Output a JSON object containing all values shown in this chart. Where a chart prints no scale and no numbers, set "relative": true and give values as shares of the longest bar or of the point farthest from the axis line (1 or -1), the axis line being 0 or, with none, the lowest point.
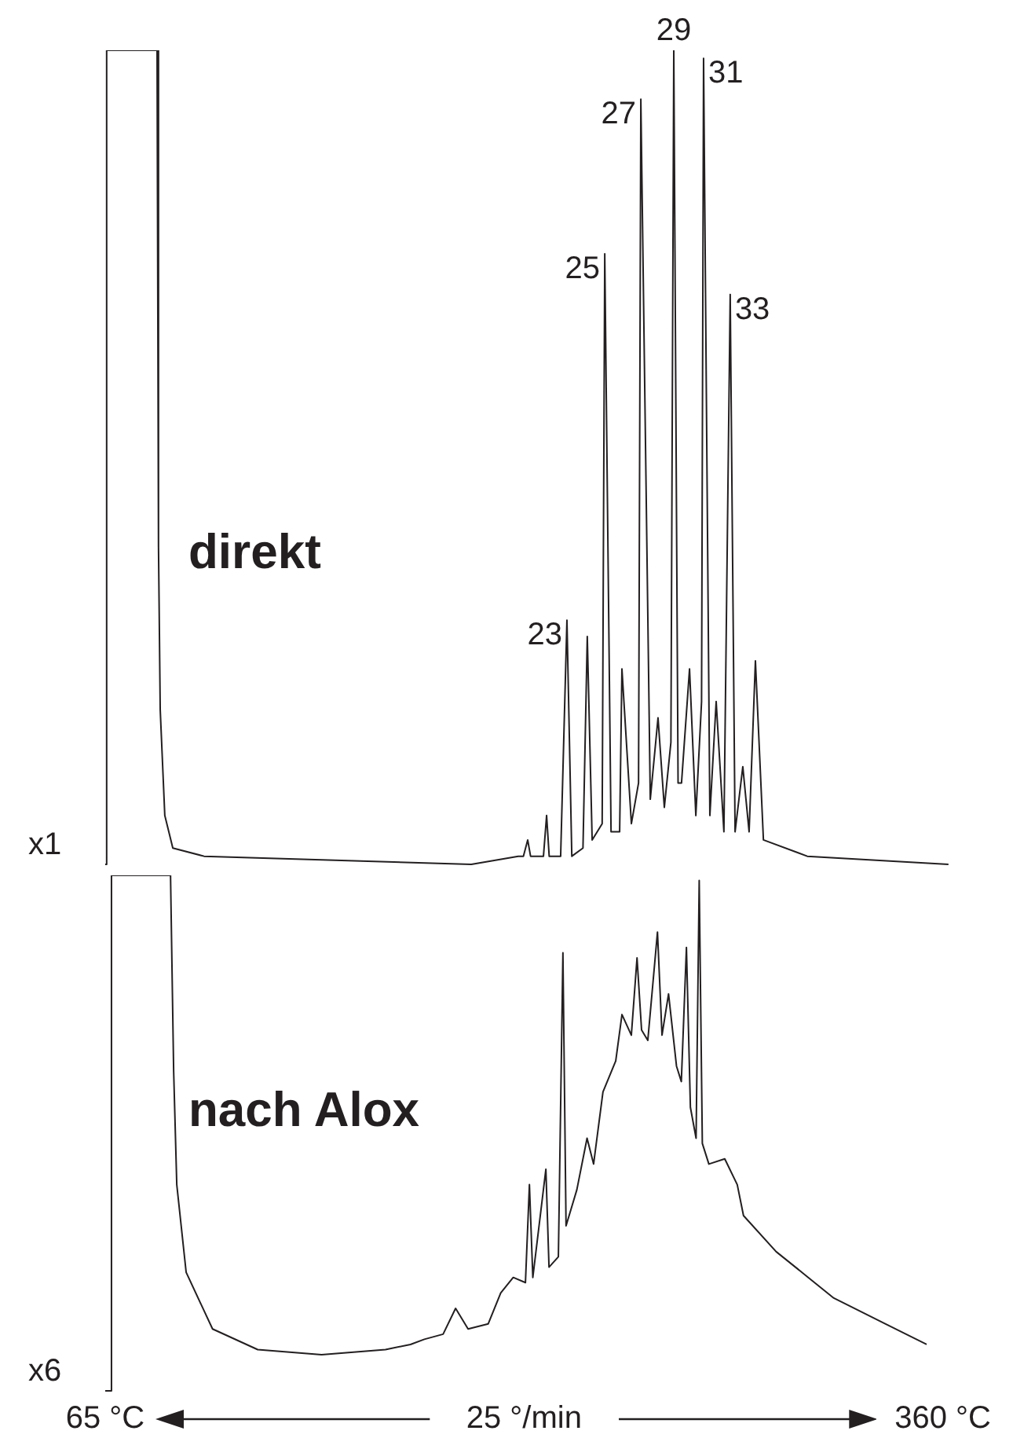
{
  "chart_data": [
    {
      "type": "line",
      "title": "direkt",
      "relative": true,
      "xlim": [
        65,
        360
      ],
      "tick_labels": false,
      "marker": "none",
      "grid": false,
      "legend": false,
      "annotations": [
        "x1",
        {
          "text": "23",
          "x": 226.2,
          "y": 0.3
        },
        {
          "text": "25",
          "x": 239.4,
          "y": 0.75
        },
        {
          "text": "27",
          "x": 252,
          "y": 0.94
        },
        {
          "text": "29",
          "x": 263.5,
          "y": 1
        },
        {
          "text": "31",
          "x": 273.9,
          "y": 0.99
        },
        {
          "text": "33",
          "x": 283.2,
          "y": 0.7
        }
      ],
      "series": [
        {
          "color": "#231f20",
          "x": [
            65,
            65.5,
            83.1,
            83.6,
            84.2,
            85.8,
            88.6,
            99.5,
            192.8,
            209.2,
            211,
            212.5,
            213.5,
            218,
            219.1,
            220,
            224,
            226.2,
            227.9,
            231.8,
            233.3,
            235,
            238.5,
            239.4,
            241.6,
            244.6,
            245.4,
            248.7,
            251.2,
            252,
            255.3,
            258,
            260.2,
            262.5,
            263.5,
            265,
            266.2,
            269,
            271.2,
            273.2,
            273.9,
            276.1,
            278.3,
            281,
            283.2,
            284.9,
            287.6,
            289.8,
            292,
            294.8,
            310.1,
            359.4
          ],
          "values": [
            0,
            1,
            1,
            0.39,
            0.19,
            0.06,
            0.02,
            0.01,
            0,
            0.01,
            0.01,
            0.03,
            0.01,
            0.01,
            0.06,
            0.01,
            0.01,
            0.3,
            0.01,
            0.02,
            0.28,
            0.03,
            0.05,
            0.75,
            0.04,
            0.04,
            0.24,
            0.05,
            0.1,
            0.94,
            0.08,
            0.18,
            0.07,
            0.15,
            1,
            0.1,
            0.1,
            0.24,
            0.06,
            0.2,
            0.99,
            0.06,
            0.2,
            0.04,
            0.7,
            0.04,
            0.12,
            0.04,
            0.25,
            0.03,
            0.01,
            0
          ]
        }
      ]
    },
    {
      "type": "line",
      "title": "nach Alox",
      "xlabel": "25 °/min",
      "relative": true,
      "xlim": [
        65,
        360
      ],
      "xticks": [
        {
          "value": 65,
          "label": "65 °C"
        },
        {
          "value": 360,
          "label": "360 °C"
        }
      ],
      "tick_labels": "x",
      "marker": "none",
      "grid": false,
      "legend": false,
      "annotations": [
        "x6"
      ],
      "series": [
        {
          "color": "#231f20",
          "x": [
            65,
            67.1,
            67.2,
            88,
            89.1,
            90.2,
            93.5,
            102.8,
            118.7,
            141.2,
            163.7,
            172.5,
            177.4,
            184,
            188.4,
            192.8,
            199.9,
            204.3,
            208.7,
            213,
            214.4,
            215.6,
            220.2,
            221.3,
            224.6,
            226.2,
            227.3,
            231.1,
            234.7,
            237,
            240.3,
            244.8,
            247,
            250.3,
            252.3,
            253.9,
            256.1,
            259.5,
            261.1,
            263.4,
            266.2,
            267.9,
            269.7,
            271.1,
            273.1,
            274.2,
            275.3,
            277.6,
            283.2,
            287.6,
            289.8,
            301.3,
            312.6,
            321.6,
            339.7,
            354.3
          ],
          "values": [
            0,
            0,
            1,
            1,
            0.62,
            0.4,
            0.23,
            0.12,
            0.08,
            0.07,
            0.08,
            0.09,
            0.1,
            0.11,
            0.16,
            0.12,
            0.13,
            0.19,
            0.22,
            0.21,
            0.4,
            0.22,
            0.43,
            0.24,
            0.26,
            0.85,
            0.32,
            0.39,
            0.49,
            0.44,
            0.58,
            0.64,
            0.73,
            0.69,
            0.84,
            0.7,
            0.68,
            0.89,
            0.69,
            0.77,
            0.63,
            0.6,
            0.86,
            0.55,
            0.49,
            0.99,
            0.48,
            0.44,
            0.45,
            0.4,
            0.34,
            0.27,
            0.22,
            0.18,
            0.13,
            0.09
          ]
        }
      ]
    }
  ]
}
